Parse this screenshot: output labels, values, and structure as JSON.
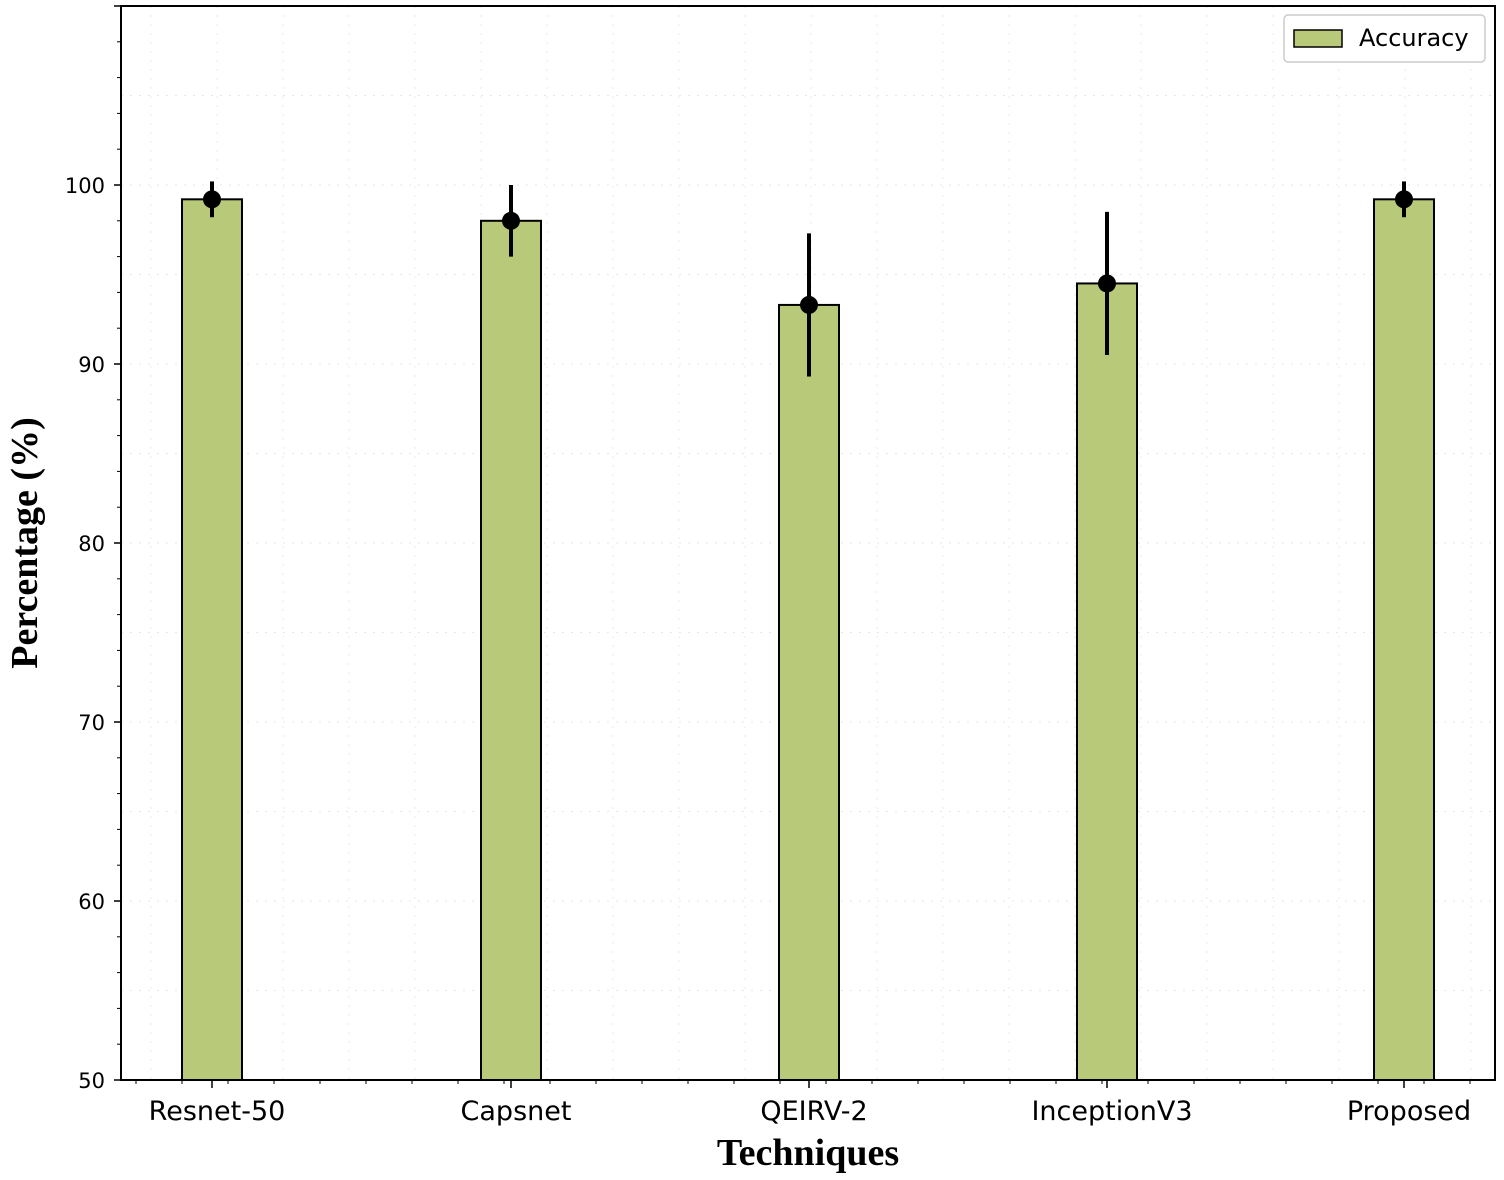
{
  "chart_data": {
    "type": "bar",
    "categories": [
      "Resnet-50",
      "Capsnet",
      "QEIRV-2",
      "InceptionV3",
      "Proposed"
    ],
    "series": [
      {
        "name": "Accuracy",
        "values": [
          99.2,
          98.0,
          93.3,
          94.5,
          99.2
        ],
        "error": [
          1.0,
          2.0,
          4.0,
          4.0,
          1.0
        ],
        "color": "#b9c97a"
      }
    ],
    "xlabel": "Techniques",
    "ylabel": "Percentage (%)",
    "ylim": [
      50,
      110
    ],
    "yticks": [
      50,
      60,
      70,
      80,
      90,
      100
    ],
    "grid": true,
    "legend_position": "top-right"
  }
}
